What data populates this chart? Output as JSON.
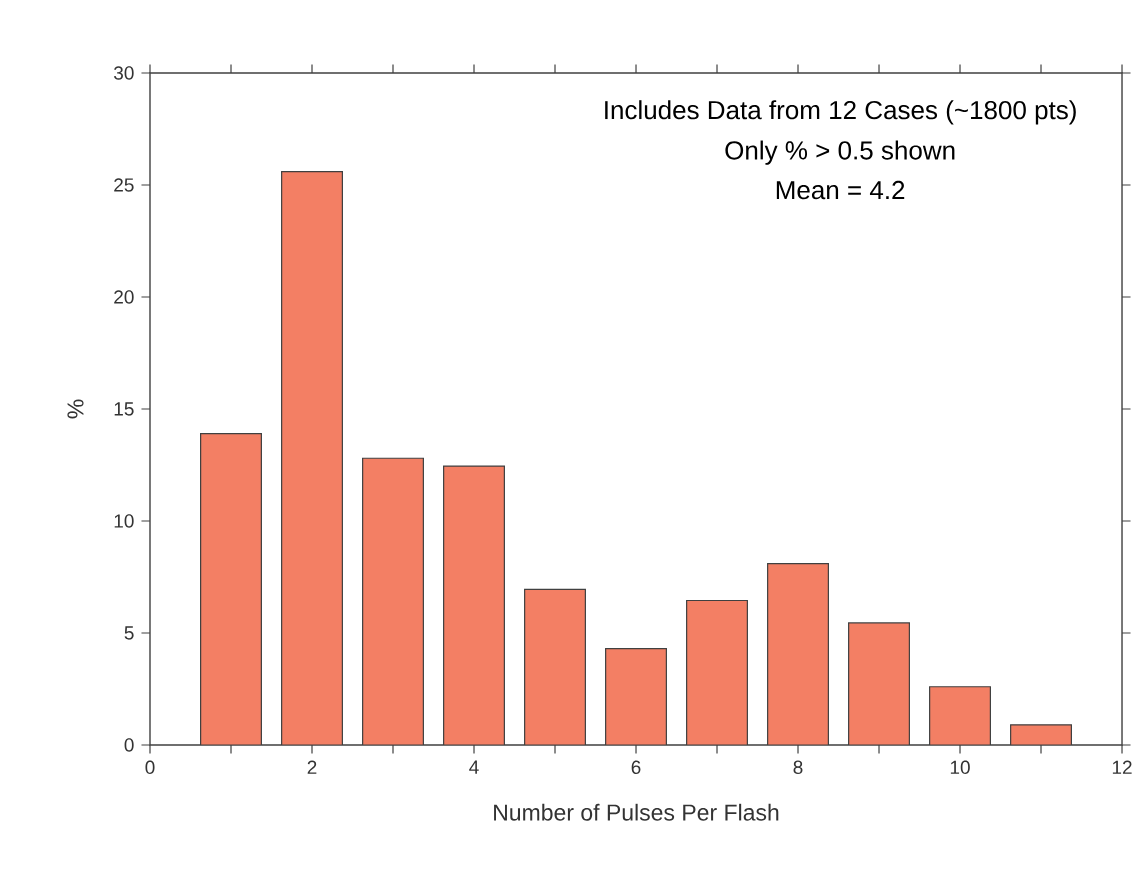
{
  "chart_data": {
    "type": "bar",
    "x": [
      1,
      2,
      3,
      4,
      5,
      6,
      7,
      8,
      9,
      10,
      11
    ],
    "values": [
      13.9,
      25.6,
      12.8,
      12.45,
      6.95,
      4.3,
      6.45,
      8.1,
      5.45,
      2.6,
      0.9
    ],
    "color": "#f37f64",
    "xlim": [
      0,
      12
    ],
    "ylim": [
      0,
      30
    ],
    "xticks": [
      0,
      {
        "value": 1,
        "label": null
      },
      2,
      {
        "value": 3,
        "label": null
      },
      4,
      {
        "value": 5,
        "label": null
      },
      6,
      {
        "value": 7,
        "label": null
      },
      8,
      {
        "value": 9,
        "label": null
      },
      10,
      {
        "value": 11,
        "label": null
      },
      12
    ],
    "yticks": [
      0,
      5,
      10,
      15,
      20,
      25,
      30
    ],
    "xlabel": "Number of Pulses Per Flash",
    "ylabel": "%",
    "annotations": [
      "Includes Data from 12 Cases (~1800 pts)",
      "Only % > 0.5 shown",
      "Mean = 4.2"
    ],
    "grid": false
  }
}
